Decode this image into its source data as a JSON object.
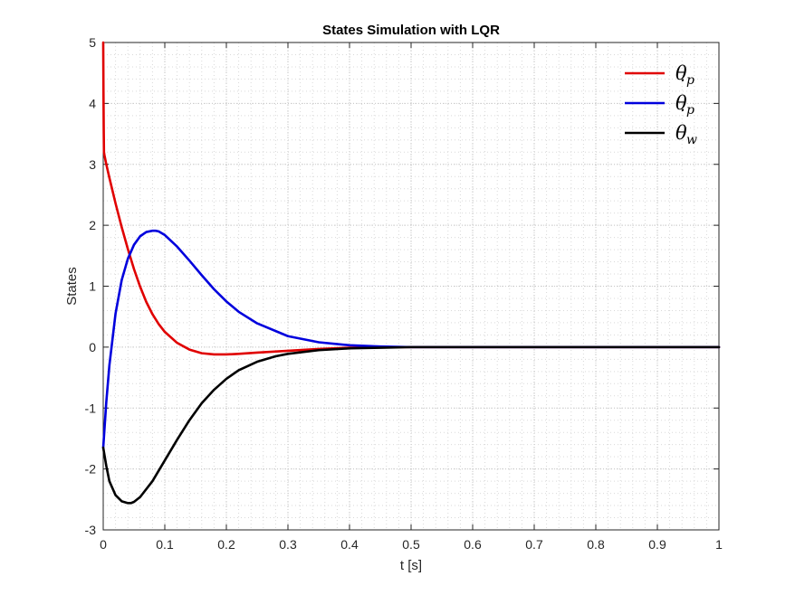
{
  "chart_data": {
    "type": "line",
    "title": "States Simulation with LQR",
    "xlabel": "t [s]",
    "ylabel": "States",
    "xlim": [
      0,
      1
    ],
    "ylim": [
      -3,
      5
    ],
    "xticks": [
      0,
      0.1,
      0.2,
      0.3,
      0.4,
      0.5,
      0.6,
      0.7,
      0.8,
      0.9,
      1
    ],
    "xtick_labels": [
      "0",
      "0.1",
      "0.2",
      "0.3",
      "0.4",
      "0.5",
      "0.6",
      "0.7",
      "0.8",
      "0.9",
      "1"
    ],
    "yticks": [
      -3,
      -2,
      -1,
      0,
      1,
      2,
      3,
      4,
      5
    ],
    "ytick_labels": [
      "-3",
      "-2",
      "-1",
      "0",
      "1",
      "2",
      "3",
      "4",
      "5"
    ],
    "grid": true,
    "minor_grid": true,
    "legend_position": "top-right",
    "series": [
      {
        "name": "θ_p",
        "legend": {
          "base": "θ",
          "sub": "p",
          "dot": false
        },
        "color": "#e00000",
        "x": [
          0,
          0.0004,
          0.0008,
          0.0012,
          0.002,
          0.005,
          0.01,
          0.02,
          0.03,
          0.04,
          0.05,
          0.06,
          0.07,
          0.08,
          0.09,
          0.1,
          0.12,
          0.14,
          0.16,
          0.18,
          0.2,
          0.22,
          0.25,
          0.3,
          0.35,
          0.4,
          0.45,
          0.5,
          0.6,
          0.7,
          0.8,
          0.9,
          1.0
        ],
        "values": [
          5.0,
          4.2,
          3.6,
          3.2,
          3.15,
          3.0,
          2.78,
          2.36,
          1.97,
          1.61,
          1.28,
          0.99,
          0.74,
          0.54,
          0.38,
          0.25,
          0.07,
          -0.04,
          -0.1,
          -0.12,
          -0.12,
          -0.11,
          -0.09,
          -0.06,
          -0.03,
          -0.01,
          0.0,
          0.0,
          0.0,
          0.0,
          0.0,
          0.0,
          0.0
        ]
      },
      {
        "name": "θ̇_p",
        "legend": {
          "base": "θ",
          "sub": "p",
          "dot": true
        },
        "color": "#0000dd",
        "x": [
          0,
          0.005,
          0.01,
          0.02,
          0.03,
          0.04,
          0.05,
          0.06,
          0.07,
          0.08,
          0.085,
          0.09,
          0.1,
          0.12,
          0.14,
          0.16,
          0.18,
          0.2,
          0.22,
          0.25,
          0.3,
          0.35,
          0.4,
          0.45,
          0.5,
          0.6,
          0.7,
          0.8,
          0.9,
          1.0
        ],
        "values": [
          -1.65,
          -0.9,
          -0.3,
          0.55,
          1.1,
          1.45,
          1.68,
          1.82,
          1.89,
          1.91,
          1.91,
          1.9,
          1.84,
          1.65,
          1.42,
          1.18,
          0.95,
          0.75,
          0.58,
          0.39,
          0.18,
          0.08,
          0.03,
          0.01,
          0.0,
          0.0,
          0.0,
          0.0,
          0.0,
          0.0
        ]
      },
      {
        "name": "θ̇_w",
        "legend": {
          "base": "θ",
          "sub": "w",
          "dot": true
        },
        "color": "#000000",
        "x": [
          0,
          0.005,
          0.01,
          0.02,
          0.03,
          0.04,
          0.045,
          0.05,
          0.06,
          0.08,
          0.1,
          0.12,
          0.14,
          0.16,
          0.18,
          0.2,
          0.22,
          0.25,
          0.28,
          0.3,
          0.35,
          0.4,
          0.45,
          0.5,
          0.55,
          0.6,
          0.7,
          0.8,
          0.9,
          1.0
        ],
        "values": [
          -1.65,
          -1.95,
          -2.2,
          -2.43,
          -2.53,
          -2.56,
          -2.56,
          -2.54,
          -2.46,
          -2.2,
          -1.86,
          -1.52,
          -1.2,
          -0.92,
          -0.7,
          -0.52,
          -0.38,
          -0.24,
          -0.15,
          -0.11,
          -0.05,
          -0.02,
          -0.01,
          0.0,
          0.0,
          0.0,
          0.0,
          0.0,
          0.0,
          0.0
        ]
      }
    ]
  }
}
